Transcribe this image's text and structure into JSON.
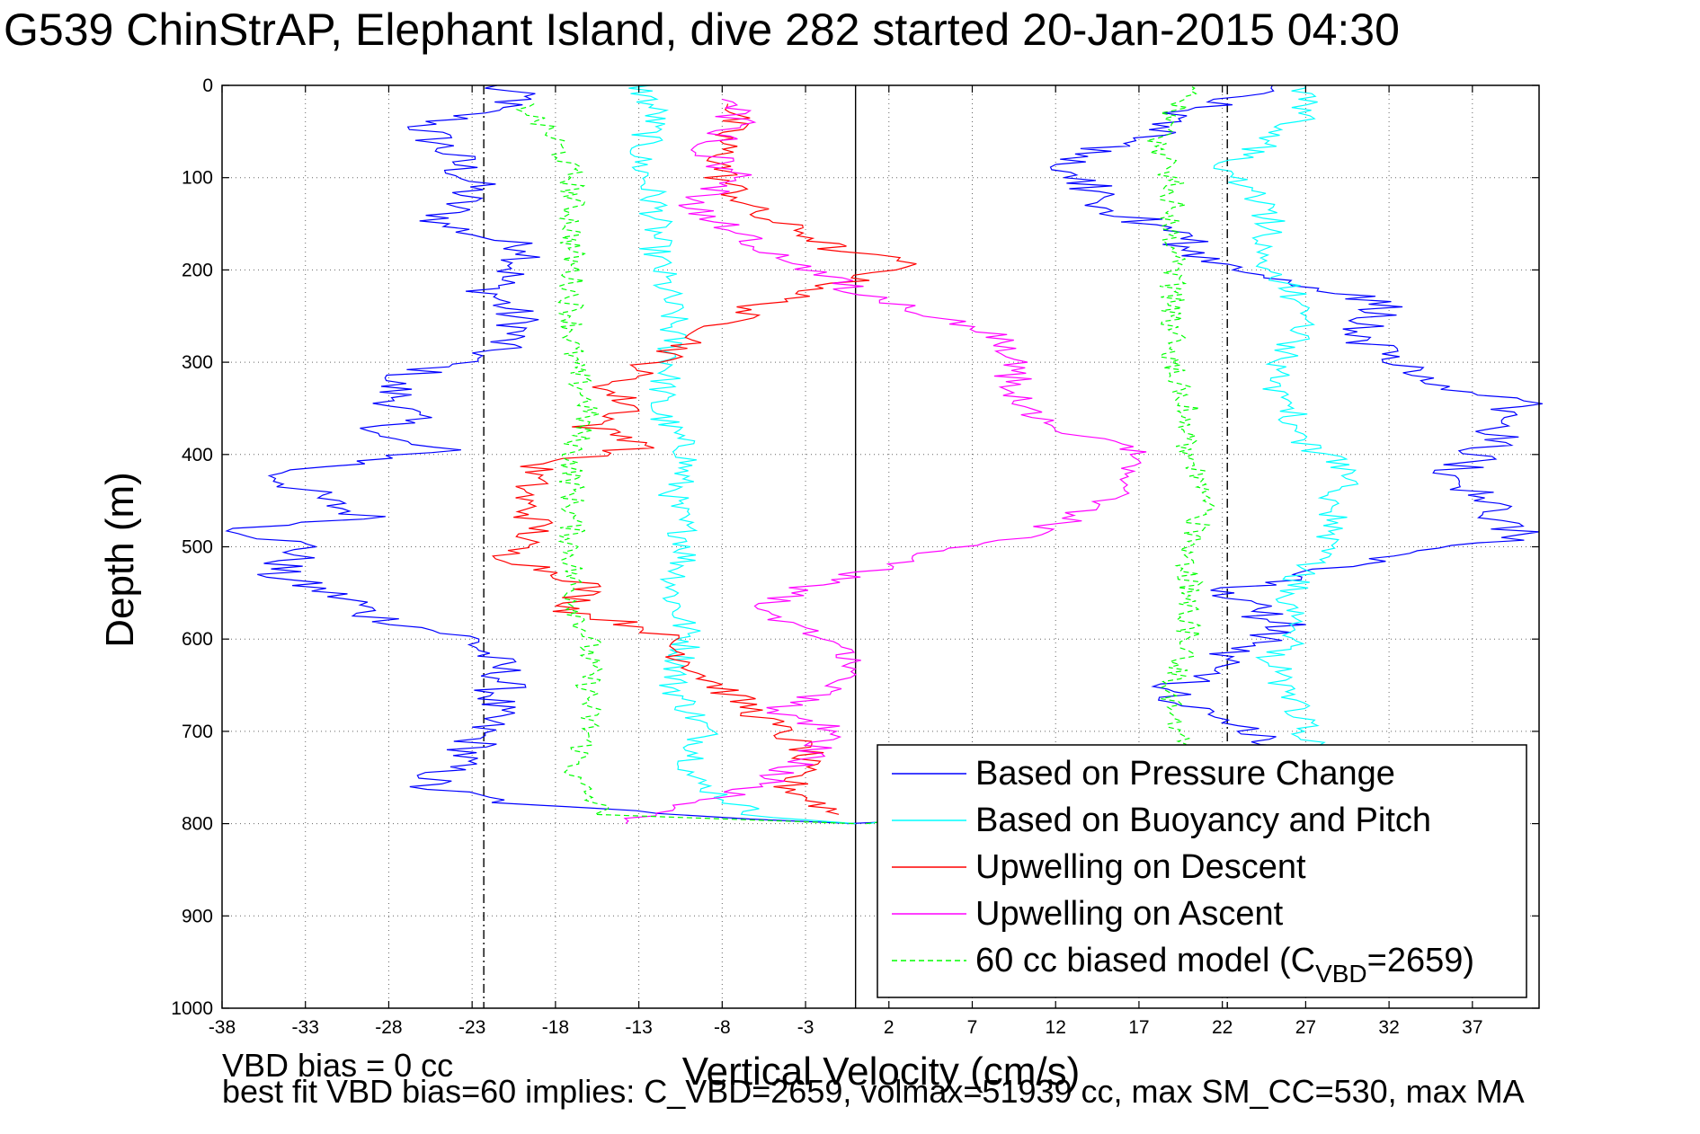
{
  "title": "G539 ChinStrAP, Elephant Island, dive 282 started 20-Jan-2015 04:30",
  "bias_note": "VBD bias = 0 cc",
  "fit_note": "best fit VBD bias=60 implies: C_VBD=2659, volmax=51939 cc, max SM_CC=530, max MA",
  "chart_data": {
    "type": "line",
    "title": "G539 ChinStrAP, Elephant Island, dive 282 started 20-Jan-2015 04:30",
    "xlabel": "Vertical Velocity (cm/s)",
    "ylabel": "Depth (m)",
    "xlim": [
      -38,
      41
    ],
    "ylim": [
      0,
      1000
    ],
    "y_reversed": true,
    "xticks": [
      -38,
      -33,
      -28,
      -23,
      -18,
      -13,
      -8,
      -3,
      2,
      7,
      12,
      17,
      22,
      27,
      32,
      37
    ],
    "yticks": [
      0,
      100,
      200,
      300,
      400,
      500,
      600,
      700,
      800,
      900,
      1000
    ],
    "grid": true,
    "legend_position": "bottom-right",
    "reference_lines": [
      {
        "x": -22.3,
        "style": "dash-dot",
        "color": "#000000"
      },
      {
        "x": 0,
        "style": "solid",
        "color": "#000000"
      },
      {
        "x": 22.3,
        "style": "dash-dot",
        "color": "#000000"
      }
    ],
    "series": [
      {
        "name": "Based on Pressure Change",
        "color": "#0000ff",
        "style": "solid",
        "descent": [
          [
            -22,
            0
          ],
          [
            -20,
            15
          ],
          [
            -26,
            45
          ],
          [
            -24,
            80
          ],
          [
            -23,
            110
          ],
          [
            -25,
            150
          ],
          [
            -19,
            180
          ],
          [
            -22,
            220
          ],
          [
            -20,
            260
          ],
          [
            -22,
            290
          ],
          [
            -28,
            320
          ],
          [
            -27,
            360
          ],
          [
            -29,
            380
          ],
          [
            -25,
            395
          ],
          [
            -30,
            410
          ],
          [
            -35,
            420
          ],
          [
            -32,
            450
          ],
          [
            -29,
            470
          ],
          [
            -37,
            480
          ],
          [
            -33,
            500
          ],
          [
            -35,
            530
          ],
          [
            -30,
            560
          ],
          [
            -29,
            575
          ],
          [
            -23,
            600
          ],
          [
            -21,
            640
          ],
          [
            -22,
            680
          ],
          [
            -23,
            720
          ],
          [
            -26,
            760
          ],
          [
            -20,
            780
          ],
          [
            -5,
            795
          ],
          [
            0,
            800
          ]
        ],
        "ascent": [
          [
            0,
            800
          ],
          [
            22,
            780
          ],
          [
            25,
            760
          ],
          [
            26,
            720
          ],
          [
            23,
            700
          ],
          [
            19,
            660
          ],
          [
            20,
            640
          ],
          [
            23,
            610
          ],
          [
            26,
            590
          ],
          [
            24,
            570
          ],
          [
            22,
            550
          ],
          [
            27,
            530
          ],
          [
            33,
            510
          ],
          [
            40,
            490
          ],
          [
            38,
            450
          ],
          [
            36,
            420
          ],
          [
            38,
            390
          ],
          [
            39,
            360
          ],
          [
            40,
            345
          ],
          [
            34,
            320
          ],
          [
            32,
            300
          ],
          [
            30,
            270
          ],
          [
            32,
            240
          ],
          [
            28,
            220
          ],
          [
            22,
            200
          ],
          [
            19,
            160
          ],
          [
            15,
            130
          ],
          [
            14,
            100
          ],
          [
            12,
            80
          ],
          [
            17,
            60
          ],
          [
            20,
            30
          ],
          [
            25,
            0
          ]
        ]
      },
      {
        "name": "Based on Buoyancy and Pitch",
        "color": "#00ffff",
        "style": "solid",
        "descent": [
          [
            -13,
            0
          ],
          [
            -12,
            30
          ],
          [
            -13,
            80
          ],
          [
            -12,
            130
          ],
          [
            -12,
            180
          ],
          [
            -11,
            250
          ],
          [
            -11,
            300
          ],
          [
            -12,
            350
          ],
          [
            -10,
            400
          ],
          [
            -11,
            450
          ],
          [
            -10,
            500
          ],
          [
            -11,
            550
          ],
          [
            -10,
            600
          ],
          [
            -11,
            650
          ],
          [
            -9,
            700
          ],
          [
            -10,
            750
          ],
          [
            -6,
            790
          ],
          [
            0,
            800
          ]
        ],
        "ascent": [
          [
            0,
            800
          ],
          [
            24,
            760
          ],
          [
            28,
            730
          ],
          [
            27,
            700
          ],
          [
            26,
            660
          ],
          [
            25,
            620
          ],
          [
            27,
            590
          ],
          [
            26,
            560
          ],
          [
            27,
            520
          ],
          [
            29,
            480
          ],
          [
            28,
            450
          ],
          [
            30,
            420
          ],
          [
            27,
            390
          ],
          [
            26,
            350
          ],
          [
            25,
            320
          ],
          [
            26,
            290
          ],
          [
            27,
            250
          ],
          [
            26,
            220
          ],
          [
            24,
            190
          ],
          [
            25,
            150
          ],
          [
            24,
            120
          ],
          [
            22,
            90
          ],
          [
            25,
            60
          ],
          [
            27,
            30
          ],
          [
            27,
            0
          ]
        ]
      },
      {
        "name": "Upwelling on Descent",
        "color": "#ff0000",
        "style": "solid",
        "descent": [
          [
            -7,
            20
          ],
          [
            -8,
            60
          ],
          [
            -8,
            100
          ],
          [
            -6,
            140
          ],
          [
            -3,
            160
          ],
          [
            -1,
            180
          ],
          [
            3,
            190
          ],
          [
            2,
            200
          ],
          [
            -2,
            220
          ],
          [
            -6,
            240
          ],
          [
            -9,
            270
          ],
          [
            -12,
            300
          ],
          [
            -15,
            330
          ],
          [
            -13,
            350
          ],
          [
            -16,
            370
          ],
          [
            -12,
            390
          ],
          [
            -19,
            410
          ],
          [
            -20,
            450
          ],
          [
            -19,
            480
          ],
          [
            -21,
            510
          ],
          [
            -16,
            540
          ],
          [
            -17,
            570
          ],
          [
            -12,
            590
          ],
          [
            -9,
            640
          ],
          [
            -6,
            680
          ],
          [
            -3,
            720
          ],
          [
            -4,
            760
          ],
          [
            -1,
            790
          ]
        ]
      },
      {
        "name": "Upwelling on Ascent",
        "color": "#ff00ff",
        "style": "solid",
        "ascent": [
          [
            -14,
            800
          ],
          [
            -10,
            780
          ],
          [
            -6,
            760
          ],
          [
            -3,
            730
          ],
          [
            -1,
            700
          ],
          [
            -5,
            680
          ],
          [
            -2,
            660
          ],
          [
            0,
            620
          ],
          [
            -2,
            600
          ],
          [
            -6,
            570
          ],
          [
            -4,
            550
          ],
          [
            0,
            530
          ],
          [
            4,
            510
          ],
          [
            10,
            490
          ],
          [
            14,
            460
          ],
          [
            16,
            430
          ],
          [
            17,
            400
          ],
          [
            14,
            380
          ],
          [
            11,
            360
          ],
          [
            9,
            330
          ],
          [
            10,
            300
          ],
          [
            8,
            270
          ],
          [
            5,
            250
          ],
          [
            1,
            230
          ],
          [
            -4,
            190
          ],
          [
            -7,
            160
          ],
          [
            -10,
            130
          ],
          [
            -7,
            100
          ],
          [
            -9,
            70
          ],
          [
            -7,
            40
          ],
          [
            -8,
            15
          ]
        ]
      },
      {
        "name": "60 cc biased model (C_VBD=2659)",
        "color": "#00ff00",
        "style": "dashed",
        "descent": [
          [
            -20,
            20
          ],
          [
            -18,
            60
          ],
          [
            -17,
            100
          ],
          [
            -17,
            150
          ],
          [
            -17,
            200
          ],
          [
            -17,
            250
          ],
          [
            -17,
            300
          ],
          [
            -16,
            350
          ],
          [
            -17,
            400
          ],
          [
            -17,
            450
          ],
          [
            -17,
            500
          ],
          [
            -17,
            550
          ],
          [
            -16,
            600
          ],
          [
            -16,
            650
          ],
          [
            -16,
            700
          ],
          [
            -17,
            750
          ],
          [
            -15,
            790
          ],
          [
            0,
            800
          ]
        ],
        "ascent": [
          [
            0,
            800
          ],
          [
            21,
            760
          ],
          [
            20,
            720
          ],
          [
            19,
            680
          ],
          [
            19,
            640
          ],
          [
            20,
            600
          ],
          [
            20,
            550
          ],
          [
            20,
            500
          ],
          [
            21,
            450
          ],
          [
            20,
            400
          ],
          [
            20,
            350
          ],
          [
            19,
            300
          ],
          [
            19,
            250
          ],
          [
            19,
            200
          ],
          [
            19,
            150
          ],
          [
            19,
            100
          ],
          [
            18,
            60
          ],
          [
            19,
            30
          ],
          [
            20,
            0
          ]
        ]
      }
    ]
  },
  "legend": {
    "items": [
      {
        "label": "Based on Pressure Change",
        "color": "#0000ff",
        "dash": ""
      },
      {
        "label": "Based on Buoyancy and Pitch",
        "color": "#00ffff",
        "dash": ""
      },
      {
        "label": "Upwelling on Descent",
        "color": "#ff0000",
        "dash": ""
      },
      {
        "label": "Upwelling on Ascent",
        "color": "#ff00ff",
        "dash": ""
      },
      {
        "label_prefix": "60 cc biased model (C",
        "label_sub": "VBD",
        "label_suffix": "=2659)",
        "color": "#00ff00",
        "dash": "6,4"
      }
    ]
  }
}
